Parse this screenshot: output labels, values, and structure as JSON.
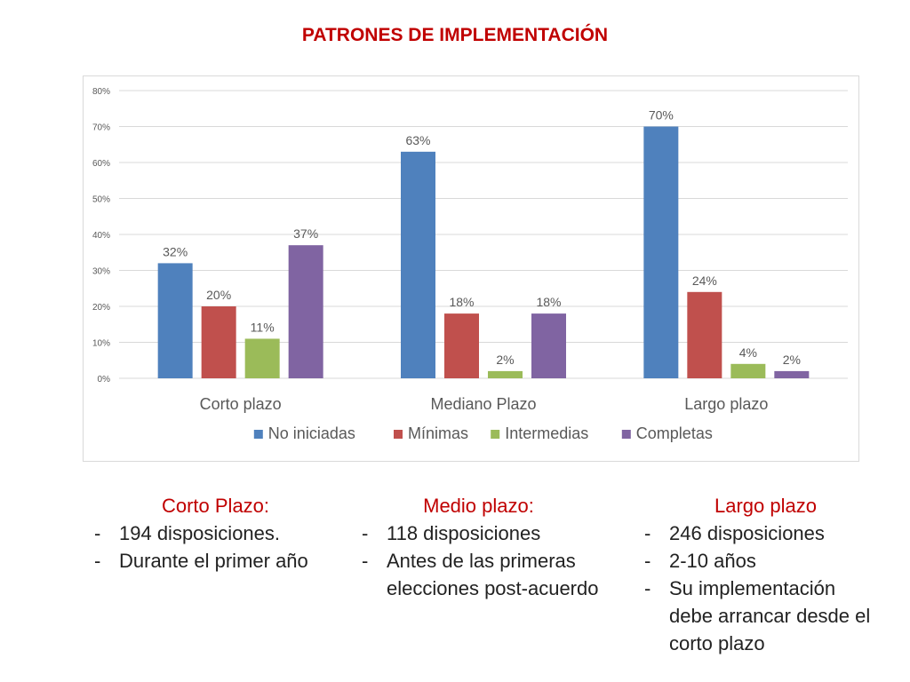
{
  "title": "PATRONES DE IMPLEMENTACIÓN",
  "chart_data": {
    "type": "bar",
    "categories": [
      "Corto plazo",
      "Mediano Plazo",
      "Largo plazo"
    ],
    "series": [
      {
        "name": "No iniciadas",
        "color": "#4f81bd",
        "values": [
          32,
          63,
          70
        ],
        "labels": [
          "32%",
          "63%",
          "70%"
        ]
      },
      {
        "name": "Mínimas",
        "color": "#c0504d",
        "values": [
          20,
          18,
          24
        ],
        "labels": [
          "20%",
          "18%",
          "24%"
        ]
      },
      {
        "name": "Intermedias",
        "color": "#9bbb59",
        "values": [
          11,
          2,
          4
        ],
        "labels": [
          "11%",
          "2%",
          "4%"
        ]
      },
      {
        "name": "Completas",
        "color": "#8064a2",
        "values": [
          37,
          18,
          2
        ],
        "labels": [
          "37%",
          "18%",
          "2%"
        ]
      }
    ],
    "yticks": [
      "0%",
      "10%",
      "20%",
      "30%",
      "40%",
      "50%",
      "60%",
      "70%",
      "80%"
    ],
    "ylim": [
      0,
      80
    ],
    "grid": true,
    "legend": "bottom"
  },
  "notes": [
    {
      "heading": "Corto Plazo:",
      "items": [
        "194 disposiciones.",
        "Durante el primer año"
      ]
    },
    {
      "heading": "Medio plazo:",
      "items": [
        "118 disposiciones",
        "Antes de las primeras elecciones  post-acuerdo"
      ]
    },
    {
      "heading": "Largo plazo",
      "items": [
        "246 disposiciones",
        "2-10 años",
        "Su implementación debe arrancar desde el corto plazo"
      ]
    }
  ]
}
